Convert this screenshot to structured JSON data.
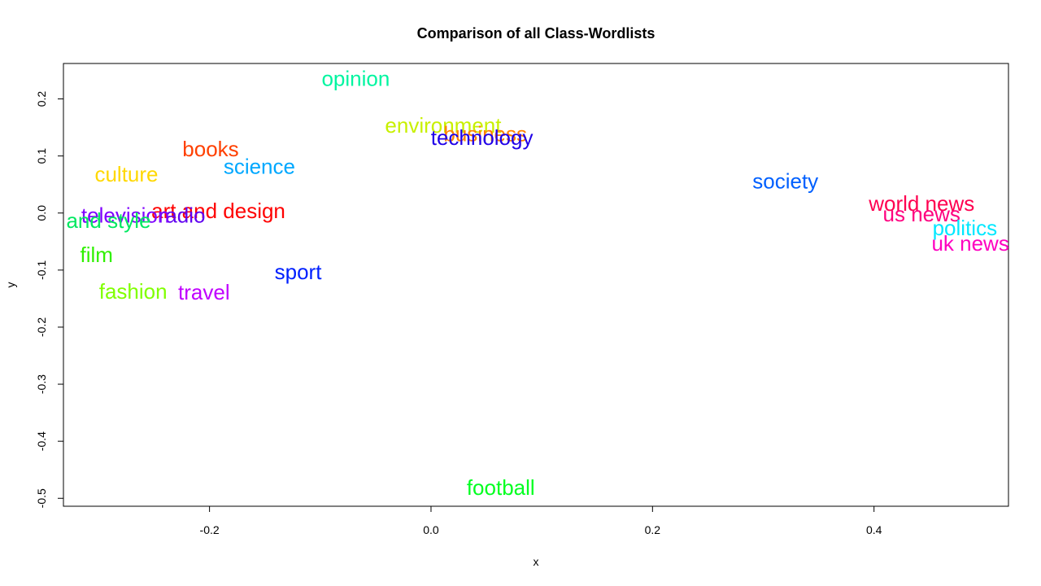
{
  "chart_data": {
    "type": "scatter",
    "title": "Comparison of all Class-Wordlists",
    "xlabel": "x",
    "ylabel": "y",
    "xlim": [
      -0.3319,
      0.5214
    ],
    "ylim": [
      -0.5139,
      0.2621
    ],
    "x_ticks": [
      -0.2,
      0.0,
      0.2,
      0.4
    ],
    "x_tick_labels": [
      "-0.2",
      "0.0",
      "0.2",
      "0.4"
    ],
    "y_ticks": [
      -0.5,
      -0.4,
      -0.3,
      -0.2,
      -0.1,
      0.0,
      0.1,
      0.2
    ],
    "y_tick_labels": [
      "-0.5",
      "-0.4",
      "-0.3",
      "-0.2",
      "-0.1",
      "0.0",
      "0.1",
      "0.2"
    ],
    "grid": false,
    "points": [
      {
        "label": "opinion",
        "x": -0.068,
        "y": 0.236,
        "color": "#00f5a0"
      },
      {
        "label": "environment",
        "x": 0.011,
        "y": 0.154,
        "color": "#c8f000"
      },
      {
        "label": "business",
        "x": 0.049,
        "y": 0.139,
        "color": "#ff8000"
      },
      {
        "label": "technology",
        "x": 0.046,
        "y": 0.132,
        "color": "#2000e8"
      },
      {
        "label": "books",
        "x": -0.199,
        "y": 0.112,
        "color": "#ff4000"
      },
      {
        "label": "science",
        "x": -0.155,
        "y": 0.082,
        "color": "#00a8ff"
      },
      {
        "label": "culture",
        "x": -0.275,
        "y": 0.068,
        "color": "#ffd800"
      },
      {
        "label": "society",
        "x": 0.32,
        "y": 0.056,
        "color": "#0060ff"
      },
      {
        "label": "world news",
        "x": 0.443,
        "y": 0.017,
        "color": "#ff0050"
      },
      {
        "label": "us news",
        "x": 0.443,
        "y": -0.002,
        "color": "#ff0080"
      },
      {
        "label": "art and design",
        "x": -0.192,
        "y": 0.004,
        "color": "#ff0000"
      },
      {
        "label": "radio",
        "x": -0.225,
        "y": -0.004,
        "color": "#6000f0"
      },
      {
        "label": "television",
        "x": -0.276,
        "y": -0.004,
        "color": "#8000ff"
      },
      {
        "label": "life and style",
        "x": -0.306,
        "y": -0.013,
        "color": "#00e860"
      },
      {
        "label": "politics",
        "x": 0.482,
        "y": -0.026,
        "color": "#00e8ff"
      },
      {
        "label": "uk news",
        "x": 0.487,
        "y": -0.053,
        "color": "#ff00c0"
      },
      {
        "label": "film",
        "x": -0.302,
        "y": -0.073,
        "color": "#30f000"
      },
      {
        "label": "sport",
        "x": -0.12,
        "y": -0.103,
        "color": "#0020ff"
      },
      {
        "label": "fashion",
        "x": -0.269,
        "y": -0.137,
        "color": "#80ff00"
      },
      {
        "label": "travel",
        "x": -0.205,
        "y": -0.139,
        "color": "#c000ff"
      },
      {
        "label": "football",
        "x": 0.063,
        "y": -0.481,
        "color": "#00ff20"
      }
    ]
  }
}
